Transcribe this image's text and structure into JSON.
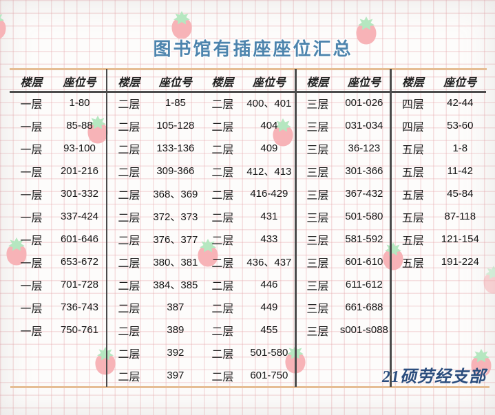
{
  "title": "图书馆有插座座位汇总",
  "footer": "21硕劳经支部",
  "colors": {
    "title_blue": "#4d84ad",
    "footer_navy": "#2b4d7d",
    "border_tan": "#e5bd94",
    "divider_dark": "#4a4a4a",
    "grid_pink": "#f2cfd2",
    "strawberry_pink": "#f7b3b7",
    "strawberry_leaf": "#b5e7c0"
  },
  "table": {
    "header_floor": "楼层",
    "header_seat": "座位号",
    "groups": [
      {
        "rows": [
          {
            "floor": "一层",
            "seats": "1-80"
          },
          {
            "floor": "一层",
            "seats": "85-88"
          },
          {
            "floor": "一层",
            "seats": "93-100"
          },
          {
            "floor": "一层",
            "seats": "201-216"
          },
          {
            "floor": "一层",
            "seats": "301-332"
          },
          {
            "floor": "一层",
            "seats": "337-424"
          },
          {
            "floor": "一层",
            "seats": "601-646"
          },
          {
            "floor": "一层",
            "seats": "653-672"
          },
          {
            "floor": "一层",
            "seats": "701-728"
          },
          {
            "floor": "一层",
            "seats": "736-743"
          },
          {
            "floor": "一层",
            "seats": "750-761"
          }
        ]
      },
      {
        "rows": [
          {
            "floor": "二层",
            "seats": "1-85"
          },
          {
            "floor": "二层",
            "seats": "105-128"
          },
          {
            "floor": "二层",
            "seats": "133-136"
          },
          {
            "floor": "二层",
            "seats": "309-366"
          },
          {
            "floor": "二层",
            "seats": "368、369"
          },
          {
            "floor": "二层",
            "seats": "372、373"
          },
          {
            "floor": "二层",
            "seats": "376、377"
          },
          {
            "floor": "二层",
            "seats": "380、381"
          },
          {
            "floor": "二层",
            "seats": "384、385"
          },
          {
            "floor": "二层",
            "seats": "387"
          },
          {
            "floor": "二层",
            "seats": "389"
          },
          {
            "floor": "二层",
            "seats": "392"
          },
          {
            "floor": "二层",
            "seats": "397"
          }
        ]
      },
      {
        "rows": [
          {
            "floor": "二层",
            "seats": "400、401"
          },
          {
            "floor": "二层",
            "seats": "404"
          },
          {
            "floor": "二层",
            "seats": "409"
          },
          {
            "floor": "二层",
            "seats": "412、413"
          },
          {
            "floor": "二层",
            "seats": "416-429"
          },
          {
            "floor": "二层",
            "seats": "431"
          },
          {
            "floor": "二层",
            "seats": "433"
          },
          {
            "floor": "二层",
            "seats": "436、437"
          },
          {
            "floor": "二层",
            "seats": "446"
          },
          {
            "floor": "二层",
            "seats": "449"
          },
          {
            "floor": "二层",
            "seats": "455"
          },
          {
            "floor": "二层",
            "seats": "501-580"
          },
          {
            "floor": "二层",
            "seats": "601-750"
          }
        ]
      },
      {
        "rows": [
          {
            "floor": "三层",
            "seats": "001-026"
          },
          {
            "floor": "三层",
            "seats": "031-034"
          },
          {
            "floor": "三层",
            "seats": "36-123"
          },
          {
            "floor": "三层",
            "seats": "301-366"
          },
          {
            "floor": "三层",
            "seats": "367-432"
          },
          {
            "floor": "三层",
            "seats": "501-580"
          },
          {
            "floor": "三层",
            "seats": "581-592"
          },
          {
            "floor": "三层",
            "seats": "601-610"
          },
          {
            "floor": "三层",
            "seats": "611-612"
          },
          {
            "floor": "三层",
            "seats": "661-688"
          },
          {
            "floor": "三层",
            "seats": "s001-s088"
          }
        ]
      },
      {
        "rows": [
          {
            "floor": "四层",
            "seats": "42-44"
          },
          {
            "floor": "四层",
            "seats": "53-60"
          },
          {
            "floor": "五层",
            "seats": "1-8"
          },
          {
            "floor": "五层",
            "seats": "11-42"
          },
          {
            "floor": "五层",
            "seats": "45-84"
          },
          {
            "floor": "五层",
            "seats": "87-118"
          },
          {
            "floor": "五层",
            "seats": "121-154"
          },
          {
            "floor": "五层",
            "seats": "191-224"
          }
        ]
      }
    ]
  }
}
